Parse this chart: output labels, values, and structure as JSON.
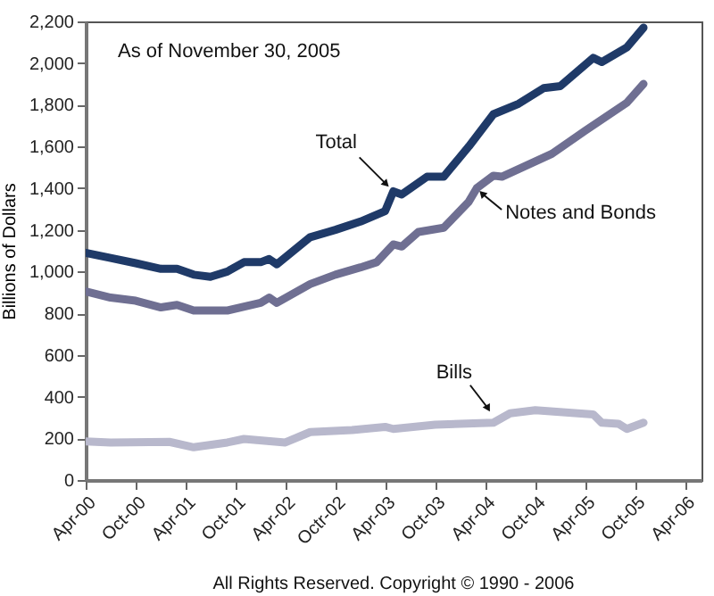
{
  "chart_data": {
    "type": "line",
    "ylabel": "Billions of Dollars",
    "annotations": [
      "As of November 30, 2005",
      "All Rights Reserved. Copyright © 1990 - 2006"
    ],
    "xlim": [
      "2000-04",
      "2006-06"
    ],
    "xticks": [
      {
        "value": "2000-04",
        "label": "Apr-00"
      },
      {
        "value": "2000-10",
        "label": "Oct-00"
      },
      {
        "value": "2001-04",
        "label": "Apr-01"
      },
      {
        "value": "2001-10",
        "label": "Oct-01"
      },
      {
        "value": "2002-04",
        "label": "Apr-02"
      },
      {
        "value": "2002-10",
        "label": "Octr-02"
      },
      {
        "value": "2003-04",
        "label": "Apr-03"
      },
      {
        "value": "2003-10",
        "label": "Oct-03"
      },
      {
        "value": "2004-04",
        "label": "Apr-04"
      },
      {
        "value": "2004-10",
        "label": "Oct-04"
      },
      {
        "value": "2005-04",
        "label": "Apr-05"
      },
      {
        "value": "2005-10",
        "label": "Oct-05"
      },
      {
        "value": "2006-04",
        "label": "Apr-06"
      }
    ],
    "ylim": [
      0,
      2200
    ],
    "yticks": [
      0,
      200,
      400,
      600,
      800,
      {
        "value": 1000,
        "label": "1,000"
      },
      {
        "value": 1200,
        "label": "1,200"
      },
      {
        "value": 1400,
        "label": "1,400"
      },
      {
        "value": 1600,
        "label": "1,600"
      },
      {
        "value": 1800,
        "label": "1,800"
      },
      {
        "value": 2000,
        "label": "2,000"
      },
      {
        "value": 2200,
        "label": "2,200"
      }
    ],
    "series": [
      {
        "name": "Total",
        "color": "#1f3a68",
        "x": [
          "2000-04",
          "2000-07",
          "2000-10",
          "2001-01",
          "2001-03",
          "2001-05",
          "2001-07",
          "2001-09",
          "2001-11",
          "2002-01",
          "2002-02",
          "2002-03",
          "2002-05",
          "2002-07",
          "2002-10",
          "2003-01",
          "2003-04",
          "2003-05",
          "2003-06",
          "2003-09",
          "2003-11",
          "2004-02",
          "2004-05",
          "2004-08",
          "2004-11",
          "2005-01",
          "2005-05",
          "2005-06",
          "2005-09",
          "2005-11"
        ],
        "values": [
          1090,
          1065,
          1040,
          1013,
          1013,
          985,
          975,
          1000,
          1045,
          1045,
          1060,
          1035,
          1100,
          1165,
          1200,
          1240,
          1290,
          1385,
          1370,
          1455,
          1455,
          1600,
          1755,
          1805,
          1880,
          1890,
          2025,
          2005,
          2075,
          2170
        ]
      },
      {
        "name": "Notes and Bonds",
        "color": "#6f6f92",
        "x": [
          "2000-04",
          "2000-07",
          "2000-10",
          "2001-01",
          "2001-03",
          "2001-05",
          "2001-09",
          "2002-01",
          "2002-02",
          "2002-03",
          "2002-07",
          "2002-10",
          "2003-01",
          "2003-03",
          "2003-05",
          "2003-06",
          "2003-08",
          "2003-11",
          "2004-02",
          "2004-03",
          "2004-05",
          "2004-06",
          "2004-12",
          "2005-04",
          "2005-09",
          "2005-11"
        ],
        "values": [
          905,
          875,
          860,
          828,
          840,
          813,
          813,
          850,
          875,
          850,
          940,
          985,
          1020,
          1045,
          1130,
          1120,
          1190,
          1210,
          1335,
          1400,
          1460,
          1455,
          1565,
          1675,
          1810,
          1900
        ]
      },
      {
        "name": "Bills",
        "color": "#b8b8cc",
        "x": [
          "2000-04",
          "2000-07",
          "2001-02",
          "2001-05",
          "2001-09",
          "2001-11",
          "2002-04",
          "2002-07",
          "2002-12",
          "2003-04",
          "2003-05",
          "2003-10",
          "2004-05",
          "2004-07",
          "2004-10",
          "2005-05",
          "2005-06",
          "2005-08",
          "2005-09",
          "2005-11"
        ],
        "values": [
          185,
          180,
          183,
          157,
          180,
          197,
          180,
          230,
          240,
          255,
          245,
          265,
          275,
          320,
          335,
          315,
          275,
          270,
          245,
          275
        ]
      }
    ]
  }
}
